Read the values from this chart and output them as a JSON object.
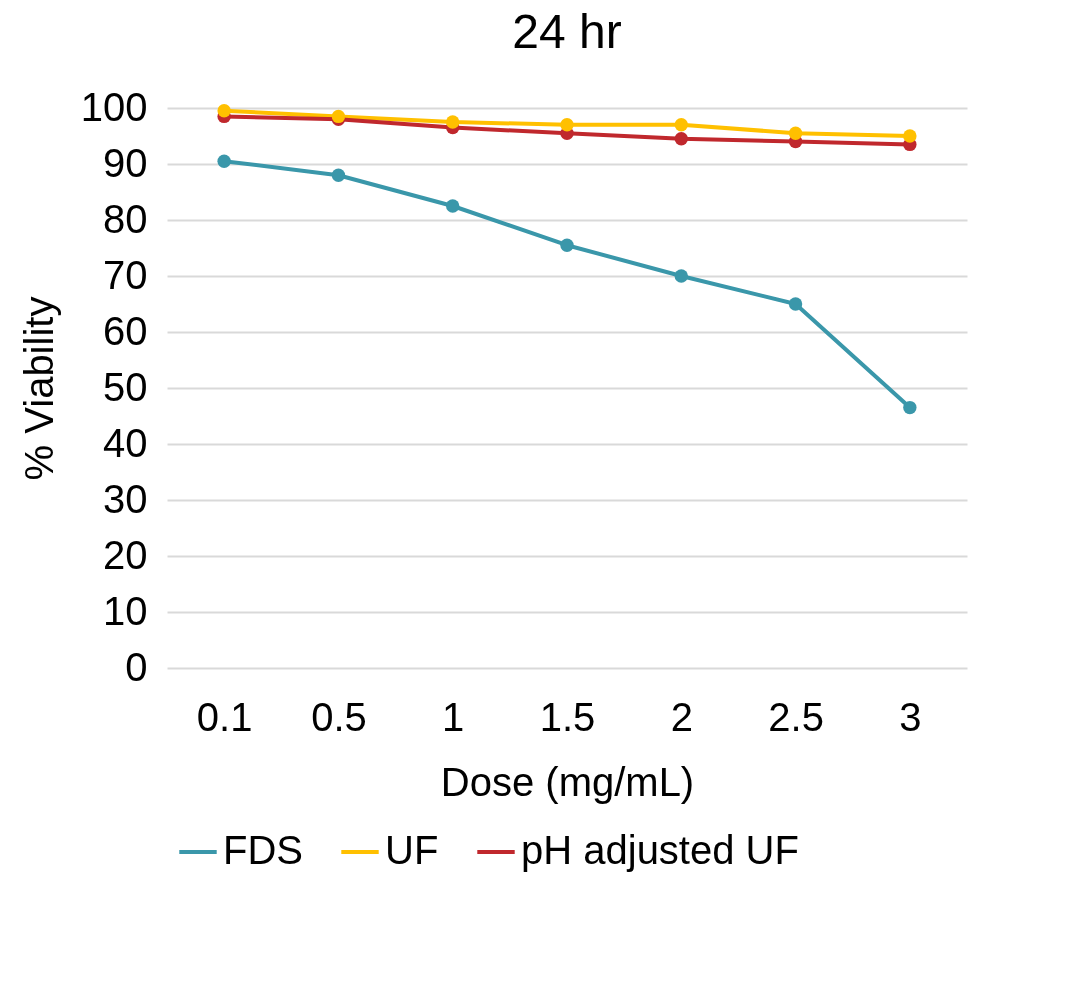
{
  "chart_data": {
    "type": "line",
    "title": "24 hr",
    "xlabel": "Dose (mg/mL)",
    "ylabel": "% Viability",
    "categories": [
      "0.1",
      "0.5",
      "1",
      "1.5",
      "2",
      "2.5",
      "3"
    ],
    "series": [
      {
        "name": "FDS",
        "color": "#3a97aa",
        "values": [
          90.5,
          88,
          82.5,
          75.5,
          70,
          65,
          46.5
        ]
      },
      {
        "name": "UF",
        "color": "#ffc000",
        "values": [
          99.5,
          98.5,
          97.5,
          97,
          97,
          95.5,
          95
        ]
      },
      {
        "name": "pH adjusted  UF",
        "color": "#c0282d",
        "values": [
          98.5,
          98,
          96.5,
          95.5,
          94.5,
          94,
          93.5
        ]
      }
    ],
    "ylim": [
      0,
      100
    ],
    "yticks": [
      0,
      10,
      20,
      30,
      40,
      50,
      60,
      70,
      80,
      90,
      100
    ],
    "grid": "y",
    "legend": "bottom",
    "marker": "circle",
    "line_style": "solid"
  }
}
